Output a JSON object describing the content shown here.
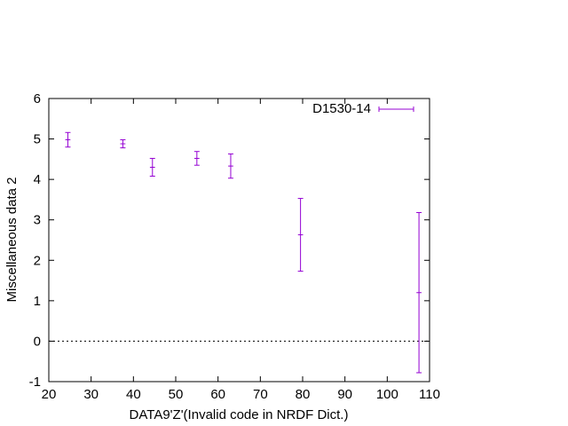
{
  "chart_data": {
    "type": "scatter",
    "xlabel": "DATA9'Z'(Invalid code in NRDF Dict.)",
    "ylabel": "Miscellaneous data 2",
    "xlim": [
      20,
      110
    ],
    "ylim": [
      -1,
      6
    ],
    "xticks": [
      20,
      30,
      40,
      50,
      60,
      70,
      80,
      90,
      100,
      110
    ],
    "yticks": [
      -1,
      0,
      1,
      2,
      3,
      4,
      5,
      6
    ],
    "zero_line": true,
    "grid": false,
    "legend_position": "top-right",
    "series": [
      {
        "name": "D1530-14",
        "color": "#9400d3",
        "points": [
          {
            "x": 24.5,
            "y": 4.98,
            "yerr": 0.18,
            "xerr": 0.6
          },
          {
            "x": 37.5,
            "y": 4.88,
            "yerr": 0.1,
            "xerr": 0.6
          },
          {
            "x": 44.5,
            "y": 4.3,
            "yerr": 0.22,
            "xerr": 0.6
          },
          {
            "x": 55.0,
            "y": 4.52,
            "yerr": 0.17,
            "xerr": 0.6
          },
          {
            "x": 63.0,
            "y": 4.33,
            "yerr": 0.3,
            "xerr": 0.6
          },
          {
            "x": 79.5,
            "y": 2.63,
            "yerr": 0.9,
            "xerr": 0.6
          },
          {
            "x": 107.5,
            "y": 1.2,
            "yerr": 1.98,
            "xerr": 0.6
          }
        ]
      }
    ]
  }
}
